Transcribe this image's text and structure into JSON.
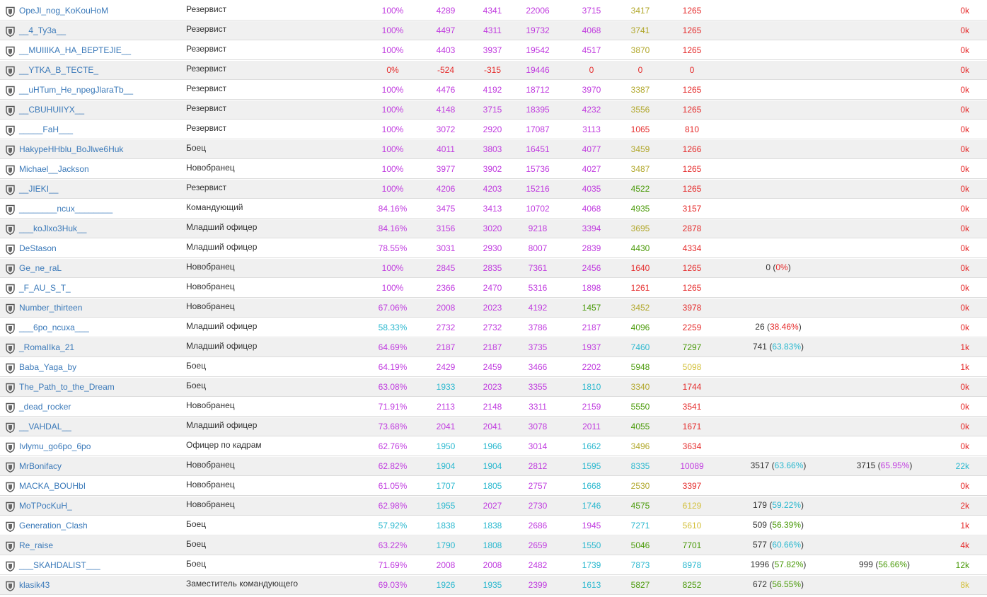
{
  "colors": {
    "purple": "#c03bdf",
    "cyan": "#2ab8cf",
    "green": "#4a9a09",
    "olive": "#b0a628",
    "red": "#e52b2b",
    "yellow": "#d3c03c",
    "link": "#3a79b9"
  },
  "rows": [
    {
      "name": "OpeJl_nog_KoKouHoM",
      "role": "Резервист",
      "pct": "100%",
      "pct_c": "purple",
      "v1": "4289",
      "c1": "purple",
      "v2": "4341",
      "c2": "purple",
      "v3": "22006",
      "c3": "purple",
      "v4": "3715",
      "c4": "purple",
      "v5": "3417",
      "c5": "olive",
      "v6": "1265",
      "c6": "red",
      "e1": "",
      "e1p": "",
      "e1c": "cyan",
      "e2": "",
      "e2p": "",
      "e2c": "purple",
      "last": "0k",
      "last_c": "red"
    },
    {
      "name": "__4_Ty3a__",
      "role": "Резервист",
      "pct": "100%",
      "pct_c": "purple",
      "v1": "4497",
      "c1": "purple",
      "v2": "4311",
      "c2": "purple",
      "v3": "19732",
      "c3": "purple",
      "v4": "4068",
      "c4": "purple",
      "v5": "3741",
      "c5": "olive",
      "v6": "1265",
      "c6": "red",
      "e1": "",
      "e1p": "",
      "e1c": "cyan",
      "e2": "",
      "e2p": "",
      "e2c": "purple",
      "last": "0k",
      "last_c": "red"
    },
    {
      "name": "__MUIIIKA_HA_BEPTEJIE__",
      "role": "Резервист",
      "pct": "100%",
      "pct_c": "purple",
      "v1": "4403",
      "c1": "purple",
      "v2": "3937",
      "c2": "purple",
      "v3": "19542",
      "c3": "purple",
      "v4": "4517",
      "c4": "purple",
      "v5": "3870",
      "c5": "olive",
      "v6": "1265",
      "c6": "red",
      "e1": "",
      "e1p": "",
      "e1c": "cyan",
      "e2": "",
      "e2p": "",
      "e2c": "purple",
      "last": "0k",
      "last_c": "red"
    },
    {
      "name": "__YTKA_B_TECTE_",
      "role": "Резервист",
      "pct": "0%",
      "pct_c": "red",
      "v1": "-524",
      "c1": "red",
      "v2": "-315",
      "c2": "red",
      "v3": "19446",
      "c3": "purple",
      "v4": "0",
      "c4": "red",
      "v5": "0",
      "c5": "red",
      "v6": "0",
      "c6": "red",
      "e1": "",
      "e1p": "",
      "e1c": "cyan",
      "e2": "",
      "e2p": "",
      "e2c": "purple",
      "last": "0k",
      "last_c": "red"
    },
    {
      "name": "__uHTum_He_npegJlaraTb__",
      "role": "Резервист",
      "pct": "100%",
      "pct_c": "purple",
      "v1": "4476",
      "c1": "purple",
      "v2": "4192",
      "c2": "purple",
      "v3": "18712",
      "c3": "purple",
      "v4": "3970",
      "c4": "purple",
      "v5": "3387",
      "c5": "olive",
      "v6": "1265",
      "c6": "red",
      "e1": "",
      "e1p": "",
      "e1c": "cyan",
      "e2": "",
      "e2p": "",
      "e2c": "purple",
      "last": "0k",
      "last_c": "red"
    },
    {
      "name": "__CBUHUIIYX__",
      "role": "Резервист",
      "pct": "100%",
      "pct_c": "purple",
      "v1": "4148",
      "c1": "purple",
      "v2": "3715",
      "c2": "purple",
      "v3": "18395",
      "c3": "purple",
      "v4": "4232",
      "c4": "purple",
      "v5": "3556",
      "c5": "olive",
      "v6": "1265",
      "c6": "red",
      "e1": "",
      "e1p": "",
      "e1c": "cyan",
      "e2": "",
      "e2p": "",
      "e2c": "purple",
      "last": "0k",
      "last_c": "red"
    },
    {
      "name": "_____FaH___",
      "role": "Резервист",
      "pct": "100%",
      "pct_c": "purple",
      "v1": "3072",
      "c1": "purple",
      "v2": "2920",
      "c2": "purple",
      "v3": "17087",
      "c3": "purple",
      "v4": "3113",
      "c4": "purple",
      "v5": "1065",
      "c5": "red",
      "v6": "810",
      "c6": "red",
      "e1": "",
      "e1p": "",
      "e1c": "cyan",
      "e2": "",
      "e2p": "",
      "e2c": "purple",
      "last": "0k",
      "last_c": "red"
    },
    {
      "name": "HakypeHHblu_BoJlwe6Huk",
      "role": "Боец",
      "pct": "100%",
      "pct_c": "purple",
      "v1": "4011",
      "c1": "purple",
      "v2": "3803",
      "c2": "purple",
      "v3": "16451",
      "c3": "purple",
      "v4": "4077",
      "c4": "purple",
      "v5": "3459",
      "c5": "olive",
      "v6": "1266",
      "c6": "red",
      "e1": "",
      "e1p": "",
      "e1c": "cyan",
      "e2": "",
      "e2p": "",
      "e2c": "purple",
      "last": "0k",
      "last_c": "red"
    },
    {
      "name": "Michael__Jackson",
      "role": "Новобранец",
      "pct": "100%",
      "pct_c": "purple",
      "v1": "3977",
      "c1": "purple",
      "v2": "3902",
      "c2": "purple",
      "v3": "15736",
      "c3": "purple",
      "v4": "4027",
      "c4": "purple",
      "v5": "3487",
      "c5": "olive",
      "v6": "1265",
      "c6": "red",
      "e1": "",
      "e1p": "",
      "e1c": "cyan",
      "e2": "",
      "e2p": "",
      "e2c": "purple",
      "last": "0k",
      "last_c": "red"
    },
    {
      "name": "__JIEKI__",
      "role": "Резервист",
      "pct": "100%",
      "pct_c": "purple",
      "v1": "4206",
      "c1": "purple",
      "v2": "4203",
      "c2": "purple",
      "v3": "15216",
      "c3": "purple",
      "v4": "4035",
      "c4": "purple",
      "v5": "4522",
      "c5": "green",
      "v6": "1265",
      "c6": "red",
      "e1": "",
      "e1p": "",
      "e1c": "cyan",
      "e2": "",
      "e2p": "",
      "e2c": "purple",
      "last": "0k",
      "last_c": "red"
    },
    {
      "name": "________ncux________",
      "role": "Командующий",
      "pct": "84.16%",
      "pct_c": "purple",
      "v1": "3475",
      "c1": "purple",
      "v2": "3413",
      "c2": "purple",
      "v3": "10702",
      "c3": "purple",
      "v4": "4068",
      "c4": "purple",
      "v5": "4935",
      "c5": "green",
      "v6": "3157",
      "c6": "red",
      "e1": "",
      "e1p": "",
      "e1c": "cyan",
      "e2": "",
      "e2p": "",
      "e2c": "purple",
      "last": "0k",
      "last_c": "red"
    },
    {
      "name": "___koJlxo3Huk__",
      "role": "Младший офицер",
      "pct": "84.16%",
      "pct_c": "purple",
      "v1": "3156",
      "c1": "purple",
      "v2": "3020",
      "c2": "purple",
      "v3": "9218",
      "c3": "purple",
      "v4": "3394",
      "c4": "purple",
      "v5": "3695",
      "c5": "olive",
      "v6": "2878",
      "c6": "red",
      "e1": "",
      "e1p": "",
      "e1c": "cyan",
      "e2": "",
      "e2p": "",
      "e2c": "purple",
      "last": "0k",
      "last_c": "red"
    },
    {
      "name": "DeStason",
      "role": "Младший офицер",
      "pct": "78.55%",
      "pct_c": "purple",
      "v1": "3031",
      "c1": "purple",
      "v2": "2930",
      "c2": "purple",
      "v3": "8007",
      "c3": "purple",
      "v4": "2839",
      "c4": "purple",
      "v5": "4430",
      "c5": "green",
      "v6": "4334",
      "c6": "red",
      "e1": "",
      "e1p": "",
      "e1c": "cyan",
      "e2": "",
      "e2p": "",
      "e2c": "purple",
      "last": "0k",
      "last_c": "red"
    },
    {
      "name": "Ge_ne_raL",
      "role": "Новобранец",
      "pct": "100%",
      "pct_c": "purple",
      "v1": "2845",
      "c1": "purple",
      "v2": "2835",
      "c2": "purple",
      "v3": "7361",
      "c3": "purple",
      "v4": "2456",
      "c4": "purple",
      "v5": "1640",
      "c5": "red",
      "v6": "1265",
      "c6": "red",
      "e1": "0",
      "e1p": "0%",
      "e1c": "red",
      "e2": "",
      "e2p": "",
      "e2c": "purple",
      "last": "0k",
      "last_c": "red"
    },
    {
      "name": "_F_AU_S_T_",
      "role": "Новобранец",
      "pct": "100%",
      "pct_c": "purple",
      "v1": "2366",
      "c1": "purple",
      "v2": "2470",
      "c2": "purple",
      "v3": "5316",
      "c3": "purple",
      "v4": "1898",
      "c4": "purple",
      "v5": "1261",
      "c5": "red",
      "v6": "1265",
      "c6": "red",
      "e1": "",
      "e1p": "",
      "e1c": "cyan",
      "e2": "",
      "e2p": "",
      "e2c": "purple",
      "last": "0k",
      "last_c": "red"
    },
    {
      "name": "Number_thirteen",
      "role": "Новобранец",
      "pct": "67.06%",
      "pct_c": "purple",
      "v1": "2008",
      "c1": "purple",
      "v2": "2023",
      "c2": "purple",
      "v3": "4192",
      "c3": "purple",
      "v4": "1457",
      "c4": "green",
      "v5": "3452",
      "c5": "olive",
      "v6": "3978",
      "c6": "red",
      "e1": "",
      "e1p": "",
      "e1c": "cyan",
      "e2": "",
      "e2p": "",
      "e2c": "purple",
      "last": "0k",
      "last_c": "red"
    },
    {
      "name": "___6po_ncuxa___",
      "role": "Младший офицер",
      "pct": "58.33%",
      "pct_c": "cyan",
      "v1": "2732",
      "c1": "purple",
      "v2": "2732",
      "c2": "purple",
      "v3": "3786",
      "c3": "purple",
      "v4": "2187",
      "c4": "purple",
      "v5": "4096",
      "c5": "green",
      "v6": "2259",
      "c6": "red",
      "e1": "26",
      "e1p": "38.46%",
      "e1c": "red",
      "e2": "",
      "e2p": "",
      "e2c": "purple",
      "last": "0k",
      "last_c": "red"
    },
    {
      "name": "_RomaIIka_21",
      "role": "Младший офицер",
      "pct": "64.69%",
      "pct_c": "purple",
      "v1": "2187",
      "c1": "purple",
      "v2": "2187",
      "c2": "purple",
      "v3": "3735",
      "c3": "purple",
      "v4": "1937",
      "c4": "purple",
      "v5": "7460",
      "c5": "cyan",
      "v6": "7297",
      "c6": "green",
      "e1": "741",
      "e1p": "63.83%",
      "e1c": "cyan",
      "e2": "",
      "e2p": "",
      "e2c": "purple",
      "last": "1k",
      "last_c": "red"
    },
    {
      "name": "Baba_Yaga_by",
      "role": "Боец",
      "pct": "64.19%",
      "pct_c": "purple",
      "v1": "2429",
      "c1": "purple",
      "v2": "2459",
      "c2": "purple",
      "v3": "3466",
      "c3": "purple",
      "v4": "2202",
      "c4": "purple",
      "v5": "5948",
      "c5": "green",
      "v6": "5098",
      "c6": "yellow",
      "e1": "",
      "e1p": "",
      "e1c": "cyan",
      "e2": "",
      "e2p": "",
      "e2c": "purple",
      "last": "1k",
      "last_c": "red"
    },
    {
      "name": "The_Path_to_the_Dream",
      "role": "Боец",
      "pct": "63.08%",
      "pct_c": "purple",
      "v1": "1933",
      "c1": "cyan",
      "v2": "2023",
      "c2": "purple",
      "v3": "3355",
      "c3": "purple",
      "v4": "1810",
      "c4": "cyan",
      "v5": "3340",
      "c5": "olive",
      "v6": "1744",
      "c6": "red",
      "e1": "",
      "e1p": "",
      "e1c": "cyan",
      "e2": "",
      "e2p": "",
      "e2c": "purple",
      "last": "0k",
      "last_c": "red"
    },
    {
      "name": "_dead_rocker",
      "role": "Новобранец",
      "pct": "71.91%",
      "pct_c": "purple",
      "v1": "2113",
      "c1": "purple",
      "v2": "2148",
      "c2": "purple",
      "v3": "3311",
      "c3": "purple",
      "v4": "2159",
      "c4": "purple",
      "v5": "5550",
      "c5": "green",
      "v6": "3541",
      "c6": "red",
      "e1": "",
      "e1p": "",
      "e1c": "cyan",
      "e2": "",
      "e2p": "",
      "e2c": "purple",
      "last": "0k",
      "last_c": "red"
    },
    {
      "name": "__VAHDAL__",
      "role": "Младший офицер",
      "pct": "73.68%",
      "pct_c": "purple",
      "v1": "2041",
      "c1": "purple",
      "v2": "2041",
      "c2": "purple",
      "v3": "3078",
      "c3": "purple",
      "v4": "2011",
      "c4": "purple",
      "v5": "4055",
      "c5": "green",
      "v6": "1671",
      "c6": "red",
      "e1": "",
      "e1p": "",
      "e1c": "cyan",
      "e2": "",
      "e2p": "",
      "e2c": "purple",
      "last": "0k",
      "last_c": "red"
    },
    {
      "name": "Ivlymu_go6po_6po",
      "role": "Офицер по кадрам",
      "pct": "62.76%",
      "pct_c": "purple",
      "v1": "1950",
      "c1": "cyan",
      "v2": "1966",
      "c2": "cyan",
      "v3": "3014",
      "c3": "purple",
      "v4": "1662",
      "c4": "cyan",
      "v5": "3496",
      "c5": "olive",
      "v6": "3634",
      "c6": "red",
      "e1": "",
      "e1p": "",
      "e1c": "cyan",
      "e2": "",
      "e2p": "",
      "e2c": "purple",
      "last": "0k",
      "last_c": "red"
    },
    {
      "name": "MrBonifacy",
      "role": "Новобранец",
      "pct": "62.82%",
      "pct_c": "purple",
      "v1": "1904",
      "c1": "cyan",
      "v2": "1904",
      "c2": "cyan",
      "v3": "2812",
      "c3": "purple",
      "v4": "1595",
      "c4": "cyan",
      "v5": "8335",
      "c5": "cyan",
      "v6": "10089",
      "c6": "purple",
      "e1": "3517",
      "e1p": "63.66%",
      "e1c": "cyan",
      "e2": "3715",
      "e2p": "65.95%",
      "e2c": "purple",
      "last": "22k",
      "last_c": "cyan"
    },
    {
      "name": "MACKA_BOUHbI",
      "role": "Новобранец",
      "pct": "61.05%",
      "pct_c": "purple",
      "v1": "1707",
      "c1": "cyan",
      "v2": "1805",
      "c2": "cyan",
      "v3": "2757",
      "c3": "purple",
      "v4": "1668",
      "c4": "cyan",
      "v5": "2530",
      "c5": "olive",
      "v6": "3397",
      "c6": "red",
      "e1": "",
      "e1p": "",
      "e1c": "cyan",
      "e2": "",
      "e2p": "",
      "e2c": "purple",
      "last": "0k",
      "last_c": "red"
    },
    {
      "name": "MoTPocKuH_",
      "role": "Новобранец",
      "pct": "62.98%",
      "pct_c": "purple",
      "v1": "1955",
      "c1": "cyan",
      "v2": "2027",
      "c2": "purple",
      "v3": "2730",
      "c3": "purple",
      "v4": "1746",
      "c4": "cyan",
      "v5": "4575",
      "c5": "green",
      "v6": "6129",
      "c6": "yellow",
      "e1": "179",
      "e1p": "59.22%",
      "e1c": "cyan",
      "e2": "",
      "e2p": "",
      "e2c": "purple",
      "last": "2k",
      "last_c": "red"
    },
    {
      "name": "Generation_Clash",
      "role": "Боец",
      "pct": "57.92%",
      "pct_c": "cyan",
      "v1": "1838",
      "c1": "cyan",
      "v2": "1838",
      "c2": "cyan",
      "v3": "2686",
      "c3": "purple",
      "v4": "1945",
      "c4": "purple",
      "v5": "7271",
      "c5": "cyan",
      "v6": "5610",
      "c6": "yellow",
      "e1": "509",
      "e1p": "56.39%",
      "e1c": "green",
      "e2": "",
      "e2p": "",
      "e2c": "purple",
      "last": "1k",
      "last_c": "red"
    },
    {
      "name": "Re_raise",
      "role": "Боец",
      "pct": "63.22%",
      "pct_c": "purple",
      "v1": "1790",
      "c1": "cyan",
      "v2": "1808",
      "c2": "cyan",
      "v3": "2659",
      "c3": "purple",
      "v4": "1550",
      "c4": "cyan",
      "v5": "5046",
      "c5": "green",
      "v6": "7701",
      "c6": "green",
      "e1": "577",
      "e1p": "60.66%",
      "e1c": "cyan",
      "e2": "",
      "e2p": "",
      "e2c": "purple",
      "last": "4k",
      "last_c": "red"
    },
    {
      "name": "___SKAHDALIST___",
      "role": "Боец",
      "pct": "71.69%",
      "pct_c": "purple",
      "v1": "2008",
      "c1": "purple",
      "v2": "2008",
      "c2": "purple",
      "v3": "2482",
      "c3": "purple",
      "v4": "1739",
      "c4": "cyan",
      "v5": "7873",
      "c5": "cyan",
      "v6": "8978",
      "c6": "cyan",
      "e1": "1996",
      "e1p": "57.82%",
      "e1c": "green",
      "e2": "999",
      "e2p": "56.66%",
      "e2c": "green",
      "last": "12k",
      "last_c": "green"
    },
    {
      "name": "klasik43",
      "role": "Заместитель командующего",
      "pct": "69.03%",
      "pct_c": "purple",
      "v1": "1926",
      "c1": "cyan",
      "v2": "1935",
      "c2": "cyan",
      "v3": "2399",
      "c3": "purple",
      "v4": "1613",
      "c4": "cyan",
      "v5": "5827",
      "c5": "green",
      "v6": "8252",
      "c6": "green",
      "e1": "672",
      "e1p": "56.55%",
      "e1c": "green",
      "e2": "",
      "e2p": "",
      "e2c": "purple",
      "last": "8k",
      "last_c": "yellow"
    }
  ]
}
